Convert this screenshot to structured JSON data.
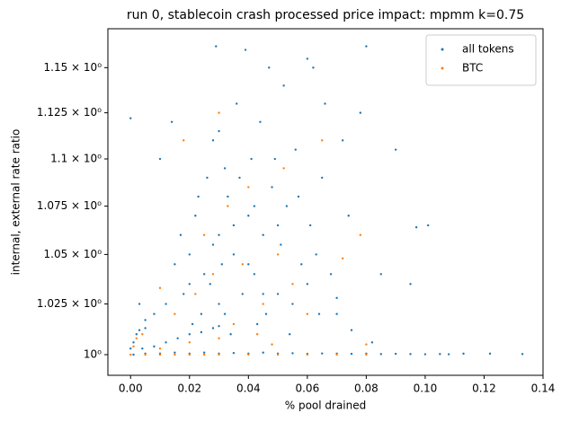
{
  "chart_data": {
    "type": "scatter",
    "title": "run 0, stablecoin crash processed price impact: mpmm k=0.75",
    "xlabel": "% pool drained",
    "ylabel": "internal, external rate ratio",
    "xlim": [
      -0.0077,
      0.14
    ],
    "ylim": [
      0.99,
      1.172
    ],
    "yscale": "log",
    "xticks": [
      {
        "value": 0,
        "label": "0.00"
      },
      0.02,
      0.04,
      0.06,
      0.08,
      {
        "value": 0.1,
        "label": "0.10"
      },
      0.12,
      0.14
    ],
    "yticks": [
      {
        "value": 1,
        "label": "10⁰"
      },
      {
        "value": 1.025,
        "label": "1.025 × 10⁰"
      },
      {
        "value": 1.05,
        "label": "1.05 × 10⁰"
      },
      {
        "value": 1.075,
        "label": "1.075 × 10⁰"
      },
      {
        "value": 1.1,
        "label": "1.1 × 10⁰"
      },
      {
        "value": 1.125,
        "label": "1.125 × 10⁰"
      },
      {
        "value": 1.15,
        "label": "1.15 × 10⁰"
      }
    ],
    "legend": "upper right",
    "series": [
      {
        "name": "all tokens",
        "color": "#1f77b4",
        "x": [
          0.001,
          0.005,
          0.01,
          0.015,
          0.02,
          0.025,
          0.03,
          0.035,
          0.04,
          0.045,
          0.05,
          0.055,
          0.06,
          0.065,
          0.07,
          0.075,
          0.08,
          0.085,
          0.09,
          0.095,
          0.1,
          0.105,
          0.108,
          0.113,
          0.122,
          0.133,
          0.0,
          0.001,
          0.002,
          0.003,
          0.005,
          0.008,
          0.012,
          0.016,
          0.02,
          0.024,
          0.028,
          0.03,
          0.004,
          0.0,
          0.005,
          0.01,
          0.014,
          0.018,
          0.02,
          0.022,
          0.025,
          0.026,
          0.028,
          0.029,
          0.03,
          0.032,
          0.033,
          0.035,
          0.036,
          0.038,
          0.039,
          0.04,
          0.041,
          0.042,
          0.044,
          0.045,
          0.046,
          0.047,
          0.048,
          0.05,
          0.051,
          0.052,
          0.053,
          0.055,
          0.056,
          0.058,
          0.06,
          0.061,
          0.062,
          0.064,
          0.065,
          0.068,
          0.07,
          0.072,
          0.075,
          0.078,
          0.08,
          0.082,
          0.085,
          0.09,
          0.095,
          0.097,
          0.101,
          0.015,
          0.012,
          0.017,
          0.021,
          0.024,
          0.027,
          0.031,
          0.034,
          0.037,
          0.043,
          0.049,
          0.054,
          0.057,
          0.063,
          0.066,
          0.074,
          0.02,
          0.023,
          0.03,
          0.04,
          0.045,
          0.05,
          0.035,
          0.028,
          0.032,
          0.042,
          0.003,
          0.008,
          0.03,
          0.06,
          0.07
        ],
        "y": [
          1.0,
          1.0005,
          1.0005,
          1.001,
          1.0005,
          1.001,
          1.0005,
          1.0008,
          1.0005,
          1.001,
          1.0005,
          1.0007,
          1.0004,
          1.0006,
          1.0005,
          1.0004,
          1.0005,
          1.0003,
          1.0004,
          1.0003,
          1.0002,
          1.0003,
          1.0002,
          1.0005,
          1.0005,
          1.0003,
          1.003,
          1.006,
          1.01,
          1.012,
          1.013,
          1.004,
          1.006,
          1.008,
          1.01,
          1.011,
          1.013,
          1.014,
          1.003,
          1.122,
          1.017,
          1.1,
          1.12,
          1.03,
          1.05,
          1.07,
          1.04,
          1.09,
          1.11,
          1.162,
          1.06,
          1.02,
          1.08,
          1.05,
          1.13,
          1.03,
          1.16,
          1.07,
          1.1,
          1.04,
          1.12,
          1.06,
          1.02,
          1.15,
          1.085,
          1.03,
          1.055,
          1.14,
          1.075,
          1.025,
          1.105,
          1.045,
          1.035,
          1.065,
          1.15,
          1.02,
          1.09,
          1.04,
          1.028,
          1.11,
          1.012,
          1.125,
          1.162,
          1.006,
          1.04,
          1.105,
          1.035,
          1.064,
          1.065,
          1.045,
          1.025,
          1.06,
          1.015,
          1.02,
          1.035,
          1.045,
          1.01,
          1.09,
          1.015,
          1.1,
          1.01,
          1.08,
          1.05,
          1.13,
          1.07,
          1.035,
          1.08,
          1.025,
          1.045,
          1.03,
          1.065,
          1.065,
          1.055,
          1.095,
          1.075,
          1.025,
          1.02,
          1.115,
          1.155,
          1.02
        ]
      },
      {
        "name": "BTC",
        "color": "#ff7f0e",
        "x": [
          0.0,
          0.005,
          0.01,
          0.015,
          0.02,
          0.025,
          0.03,
          0.04,
          0.05,
          0.06,
          0.07,
          0.08,
          0.001,
          0.002,
          0.004,
          0.01,
          0.02,
          0.03,
          0.01,
          0.015,
          0.018,
          0.022,
          0.025,
          0.03,
          0.035,
          0.038,
          0.04,
          0.045,
          0.048,
          0.05,
          0.055,
          0.06,
          0.065,
          0.072,
          0.078,
          0.08,
          0.028,
          0.033,
          0.043,
          0.052
        ],
        "y": [
          1.0,
          1.0,
          1.0,
          1.0,
          1.0,
          1.0,
          1.0,
          1.0,
          1.0,
          1.0,
          1.0,
          1.0,
          1.004,
          1.008,
          1.01,
          1.003,
          1.006,
          1.008,
          1.033,
          1.02,
          1.11,
          1.03,
          1.06,
          1.125,
          1.015,
          1.045,
          1.085,
          1.025,
          1.005,
          1.05,
          1.035,
          1.02,
          1.11,
          1.048,
          1.06,
          1.005,
          1.04,
          1.075,
          1.01,
          1.095
        ]
      }
    ]
  }
}
